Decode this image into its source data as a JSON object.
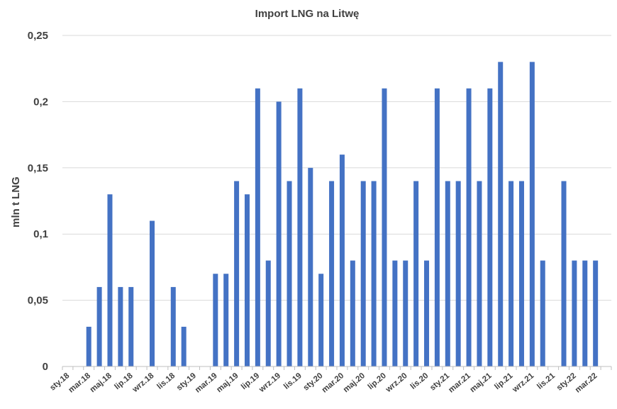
{
  "chart_data": {
    "type": "bar",
    "title": "Import LNG na Litwę",
    "xlabel": "",
    "ylabel": "mln t LNG",
    "ylim": [
      0,
      0.25
    ],
    "yticks": [
      0,
      0.05,
      0.1,
      0.15,
      0.2,
      0.25
    ],
    "ytick_labels": [
      "0",
      "0,05",
      "0,1",
      "0,15",
      "0,2",
      "0,25"
    ],
    "grid": true,
    "legend": "none",
    "bar_color": "#4472C4",
    "categories": [
      "sty.18",
      "lut.18",
      "mar.18",
      "kwi.18",
      "maj.18",
      "cze.18",
      "lip.18",
      "sie.18",
      "wrz.18",
      "paź.18",
      "lis.18",
      "gru.18",
      "sty.19",
      "lut.19",
      "mar.19",
      "kwi.19",
      "maj.19",
      "cze.19",
      "lip.19",
      "sie.19",
      "wrz.19",
      "paź.19",
      "lis.19",
      "gru.19",
      "sty.20",
      "lut.20",
      "mar.20",
      "kwi.20",
      "maj.20",
      "cze.20",
      "lip.20",
      "sie.20",
      "wrz.20",
      "paź.20",
      "lis.20",
      "gru.20",
      "sty.21",
      "lut.21",
      "mar.21",
      "kwi.21",
      "maj.21",
      "cze.21",
      "lip.21",
      "sie.21",
      "wrz.21",
      "paź.21",
      "lis.21",
      "gru.21",
      "sty.22",
      "lut.22",
      "mar.22",
      "kwi.22"
    ],
    "tick_labels": [
      "sty.18",
      "mar.18",
      "maj.18",
      "lip.18",
      "wrz.18",
      "lis.18",
      "sty.19",
      "mar.19",
      "maj.19",
      "lip.19",
      "wrz.19",
      "lis.19",
      "sty.20",
      "mar.20",
      "maj.20",
      "lip.20",
      "wrz.20",
      "lis.20",
      "sty.21",
      "mar.21",
      "maj.21",
      "lip.21",
      "wrz.21",
      "lis.21",
      "sty.22",
      "mar.22"
    ],
    "values": [
      0,
      0,
      0.03,
      0.06,
      0.13,
      0.06,
      0.06,
      0,
      0.11,
      0,
      0.06,
      0.03,
      0,
      0,
      0.07,
      0.07,
      0.14,
      0.13,
      0.21,
      0.08,
      0.2,
      0.14,
      0.21,
      0.15,
      0.07,
      0.14,
      0.16,
      0.08,
      0.14,
      0.14,
      0.21,
      0.08,
      0.08,
      0.14,
      0.08,
      0.21,
      0.14,
      0.14,
      0.21,
      0.14,
      0.21,
      0.23,
      0.14,
      0.14,
      0.23,
      0.08,
      0,
      0.14,
      0.08,
      0.08,
      0.08,
      0
    ]
  }
}
